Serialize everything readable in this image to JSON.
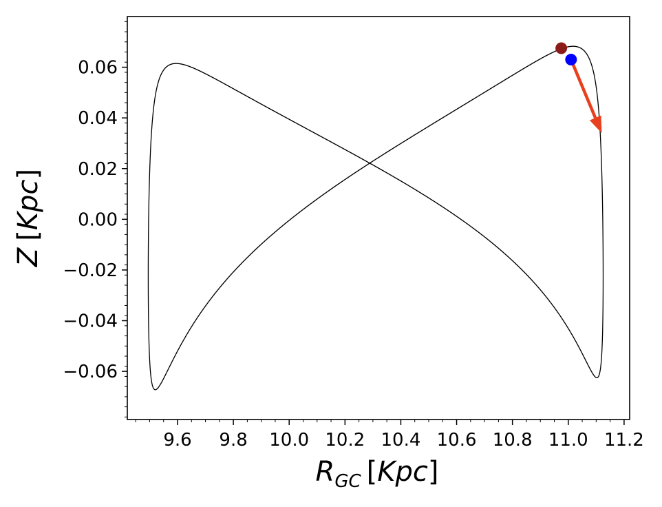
{
  "chart_data": {
    "type": "line",
    "title": "",
    "xlabel": {
      "main": "R",
      "sub": "GC",
      "unit": "[Kpc]"
    },
    "ylabel": {
      "main": "Z",
      "unit": "[Kpc]"
    },
    "xlim": [
      9.42,
      11.22
    ],
    "ylim": [
      -0.079,
      0.08
    ],
    "xticks": [
      {
        "value": 9.6,
        "label": "9.6"
      },
      {
        "value": 9.8,
        "label": "9.8"
      },
      {
        "value": 10.0,
        "label": "10.0"
      },
      {
        "value": 10.2,
        "label": "10.2"
      },
      {
        "value": 10.4,
        "label": "10.4"
      },
      {
        "value": 10.6,
        "label": "10.6"
      },
      {
        "value": 10.8,
        "label": "10.8"
      },
      {
        "value": 11.0,
        "label": "11.0"
      },
      {
        "value": 11.2,
        "label": "11.2"
      }
    ],
    "yticks": [
      {
        "value": 0.06,
        "label": "0.06"
      },
      {
        "value": 0.04,
        "label": "0.04"
      },
      {
        "value": 0.02,
        "label": "0.02"
      },
      {
        "value": 0.0,
        "label": "0.00"
      },
      {
        "value": -0.02,
        "label": "−0.02"
      },
      {
        "value": -0.04,
        "label": "−0.04"
      },
      {
        "value": -0.06,
        "label": "−0.06"
      }
    ],
    "orbit": {
      "r_min": 9.495,
      "r_max": 11.125,
      "z_max": 0.069,
      "radial_periods": 11.5,
      "vertical_periods": 23,
      "color": "#000000"
    },
    "markers": [
      {
        "x": 10.975,
        "y": 0.0675,
        "color": "#8b1a1a"
      },
      {
        "x": 11.01,
        "y": 0.063,
        "color": "#0000ff"
      }
    ],
    "arrow": {
      "from": [
        11.01,
        0.063
      ],
      "to": [
        11.12,
        0.034
      ],
      "color": "#e8401e"
    }
  }
}
